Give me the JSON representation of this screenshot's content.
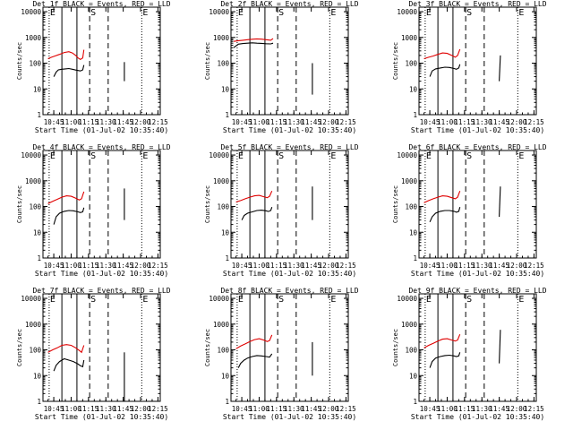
{
  "figure": {
    "xlabel": "Start Time (01-Jul-02 10:35:40)",
    "ylabel": "Counts/sec",
    "xticks": [
      "10:45",
      "11:00",
      "11:15",
      "11:30",
      "11:45",
      "12:00",
      "12:15"
    ],
    "yticks": [
      "1",
      "10",
      "100",
      "1000",
      "10000"
    ],
    "colors": {
      "events": "#000000",
      "lld": "#e00000",
      "axes": "#000000",
      "background": "#ffffff"
    }
  },
  "chart_data": [
    {
      "type": "line",
      "title": "Det 1f BLACK = Events, RED = LLD",
      "xlim": [
        "10:35:40",
        "12:17"
      ],
      "ylim": [
        1,
        15000
      ],
      "yscale": "log",
      "markers": [
        {
          "label": "E",
          "time": "10:41"
        },
        {
          "label": "S",
          "time": "11:16"
        },
        {
          "label": "E",
          "time": "12:01"
        }
      ],
      "series": [
        {
          "name": "Events",
          "color": "#000000",
          "x": [
            "10:45",
            "10:47",
            "10:49",
            "10:52",
            "10:55",
            "10:58",
            "11:01",
            "11:04",
            "11:06",
            "11:08",
            "11:10",
            "11:11"
          ],
          "values": [
            30,
            45,
            55,
            58,
            60,
            62,
            58,
            54,
            52,
            50,
            55,
            85
          ]
        },
        {
          "name": "LLD",
          "color": "#e00000",
          "x": [
            "10:40",
            "10:43",
            "10:46",
            "10:50",
            "10:54",
            "10:58",
            "11:01",
            "11:04",
            "11:06",
            "11:08",
            "11:10",
            "11:11"
          ],
          "values": [
            150,
            170,
            190,
            220,
            260,
            280,
            250,
            200,
            160,
            140,
            160,
            330
          ]
        },
        {
          "name": "Events (late)",
          "color": "#000000",
          "x": [
            "11:46",
            "11:46"
          ],
          "values": [
            20,
            110
          ]
        }
      ]
    },
    {
      "type": "line",
      "title": "Det 2f BLACK = Events, RED = LLD",
      "xlim": [
        "10:35:40",
        "12:17"
      ],
      "ylim": [
        1,
        15000
      ],
      "yscale": "log",
      "markers": [
        {
          "label": "E",
          "time": "10:41"
        },
        {
          "label": "S",
          "time": "11:16"
        },
        {
          "label": "E",
          "time": "12:01"
        }
      ],
      "series": [
        {
          "name": "Events",
          "color": "#000000",
          "x": [
            "10:38",
            "10:42",
            "10:46",
            "10:50",
            "10:54",
            "10:58",
            "11:02",
            "11:06",
            "11:10",
            "11:12"
          ],
          "values": [
            400,
            550,
            580,
            600,
            620,
            600,
            590,
            570,
            560,
            600
          ]
        },
        {
          "name": "LLD",
          "color": "#e00000",
          "x": [
            "10:38",
            "10:42",
            "10:46",
            "10:50",
            "10:54",
            "10:58",
            "11:02",
            "11:06",
            "11:10",
            "11:12"
          ],
          "values": [
            700,
            750,
            780,
            820,
            850,
            880,
            860,
            820,
            780,
            900
          ]
        },
        {
          "name": "Events (late)",
          "color": "#000000",
          "x": [
            "11:46",
            "11:46"
          ],
          "values": [
            6,
            100
          ]
        }
      ]
    },
    {
      "type": "line",
      "title": "Det 3f BLACK = Events, RED = LLD",
      "xlim": [
        "10:35:40",
        "12:17"
      ],
      "ylim": [
        1,
        15000
      ],
      "yscale": "log",
      "markers": [
        {
          "label": "E",
          "time": "10:41"
        },
        {
          "label": "S",
          "time": "11:16"
        },
        {
          "label": "E",
          "time": "12:01"
        }
      ],
      "series": [
        {
          "name": "Events",
          "color": "#000000",
          "x": [
            "10:45",
            "10:47",
            "10:50",
            "10:54",
            "10:58",
            "11:02",
            "11:06",
            "11:08",
            "11:10",
            "11:11"
          ],
          "values": [
            30,
            50,
            60,
            65,
            70,
            68,
            62,
            58,
            65,
            90
          ]
        },
        {
          "name": "LLD",
          "color": "#e00000",
          "x": [
            "10:40",
            "10:44",
            "10:48",
            "10:52",
            "10:56",
            "11:00",
            "11:04",
            "11:07",
            "11:09",
            "11:11"
          ],
          "values": [
            150,
            170,
            190,
            220,
            250,
            240,
            200,
            170,
            200,
            350
          ]
        },
        {
          "name": "Events (late)",
          "color": "#000000",
          "x": [
            "11:45",
            "11:46"
          ],
          "values": [
            20,
            200
          ]
        }
      ]
    },
    {
      "type": "line",
      "title": "Det 4f BLACK = Events, RED = LLD",
      "xlim": [
        "10:35:40",
        "12:17"
      ],
      "ylim": [
        1,
        15000
      ],
      "yscale": "log",
      "markers": [
        {
          "label": "E",
          "time": "10:41"
        },
        {
          "label": "S",
          "time": "11:16"
        },
        {
          "label": "E",
          "time": "12:01"
        }
      ],
      "series": [
        {
          "name": "Events",
          "color": "#000000",
          "x": [
            "10:45",
            "10:47",
            "10:50",
            "10:54",
            "10:58",
            "11:02",
            "11:06",
            "11:08",
            "11:10",
            "11:11"
          ],
          "values": [
            20,
            40,
            55,
            65,
            70,
            68,
            62,
            58,
            62,
            90
          ]
        },
        {
          "name": "LLD",
          "color": "#e00000",
          "x": [
            "10:40",
            "10:44",
            "10:48",
            "10:52",
            "10:56",
            "11:00",
            "11:04",
            "11:07",
            "11:09",
            "11:11"
          ],
          "values": [
            130,
            160,
            190,
            230,
            260,
            250,
            210,
            180,
            200,
            380
          ]
        },
        {
          "name": "Events (late)",
          "color": "#000000",
          "x": [
            "11:46",
            "11:46"
          ],
          "values": [
            30,
            500
          ]
        }
      ]
    },
    {
      "type": "line",
      "title": "Det 5f BLACK = Events, RED = LLD",
      "xlim": [
        "10:35:40",
        "12:17"
      ],
      "ylim": [
        1,
        15000
      ],
      "yscale": "log",
      "markers": [
        {
          "label": "E",
          "time": "10:41"
        },
        {
          "label": "S",
          "time": "11:16"
        },
        {
          "label": "E",
          "time": "12:01"
        }
      ],
      "series": [
        {
          "name": "Events",
          "color": "#000000",
          "x": [
            "10:45",
            "10:47",
            "10:50",
            "10:54",
            "10:58",
            "11:02",
            "11:06",
            "11:08",
            "11:10",
            "11:11"
          ],
          "values": [
            30,
            45,
            55,
            62,
            70,
            72,
            68,
            64,
            70,
            95
          ]
        },
        {
          "name": "LLD",
          "color": "#e00000",
          "x": [
            "10:40",
            "10:44",
            "10:48",
            "10:52",
            "10:56",
            "11:00",
            "11:04",
            "11:07",
            "11:09",
            "11:11"
          ],
          "values": [
            150,
            170,
            200,
            230,
            260,
            270,
            240,
            220,
            250,
            400
          ]
        },
        {
          "name": "Events (late)",
          "color": "#000000",
          "x": [
            "11:46",
            "11:46"
          ],
          "values": [
            30,
            600
          ]
        }
      ]
    },
    {
      "type": "line",
      "title": "Det 6f BLACK = Events, RED = LLD",
      "xlim": [
        "10:35:40",
        "12:17"
      ],
      "ylim": [
        1,
        15000
      ],
      "yscale": "log",
      "markers": [
        {
          "label": "E",
          "time": "10:41"
        },
        {
          "label": "S",
          "time": "11:16"
        },
        {
          "label": "E",
          "time": "12:01"
        }
      ],
      "series": [
        {
          "name": "Events",
          "color": "#000000",
          "x": [
            "10:45",
            "10:47",
            "10:50",
            "10:54",
            "10:58",
            "11:02",
            "11:06",
            "11:08",
            "11:10",
            "11:11"
          ],
          "values": [
            25,
            40,
            55,
            65,
            70,
            70,
            65,
            60,
            65,
            95
          ]
        },
        {
          "name": "LLD",
          "color": "#e00000",
          "x": [
            "10:40",
            "10:44",
            "10:48",
            "10:52",
            "10:56",
            "11:00",
            "11:04",
            "11:07",
            "11:09",
            "11:11"
          ],
          "values": [
            140,
            170,
            200,
            230,
            260,
            250,
            220,
            200,
            230,
            400
          ]
        },
        {
          "name": "Events (late)",
          "color": "#000000",
          "x": [
            "11:45",
            "11:46"
          ],
          "values": [
            40,
            600
          ]
        }
      ]
    },
    {
      "type": "line",
      "title": "Det 7f BLACK = Events, RED = LLD",
      "xlim": [
        "10:35:40",
        "12:17"
      ],
      "ylim": [
        1,
        15000
      ],
      "yscale": "log",
      "markers": [
        {
          "label": "E",
          "time": "10:41"
        },
        {
          "label": "S",
          "time": "11:16"
        },
        {
          "label": "E",
          "time": "12:01"
        }
      ],
      "series": [
        {
          "name": "Events",
          "color": "#000000",
          "x": [
            "10:45",
            "10:47",
            "10:50",
            "10:54",
            "10:58",
            "11:02",
            "11:06",
            "11:08",
            "11:10",
            "11:11"
          ],
          "values": [
            15,
            25,
            35,
            45,
            40,
            35,
            28,
            24,
            22,
            40
          ]
        },
        {
          "name": "LLD",
          "color": "#e00000",
          "x": [
            "10:40",
            "10:44",
            "10:48",
            "10:52",
            "10:56",
            "11:00",
            "11:04",
            "11:07",
            "11:09",
            "11:11"
          ],
          "values": [
            80,
            100,
            120,
            150,
            160,
            150,
            120,
            95,
            80,
            150
          ]
        },
        {
          "name": "Events (late)",
          "color": "#000000",
          "x": [
            "11:46",
            "11:46"
          ],
          "values": [
            1,
            80
          ]
        }
      ]
    },
    {
      "type": "line",
      "title": "Det 8f BLACK = Events, RED = LLD",
      "xlim": [
        "10:35:40",
        "12:17"
      ],
      "ylim": [
        1,
        15000
      ],
      "yscale": "log",
      "markers": [
        {
          "label": "E",
          "time": "10:41"
        },
        {
          "label": "S",
          "time": "11:16"
        },
        {
          "label": "E",
          "time": "12:01"
        }
      ],
      "series": [
        {
          "name": "Events",
          "color": "#000000",
          "x": [
            "10:42",
            "10:44",
            "10:47",
            "10:50",
            "10:54",
            "10:58",
            "11:02",
            "11:06",
            "11:09",
            "11:11"
          ],
          "values": [
            20,
            30,
            40,
            48,
            55,
            60,
            58,
            55,
            52,
            70
          ]
        },
        {
          "name": "LLD",
          "color": "#e00000",
          "x": [
            "10:40",
            "10:44",
            "10:48",
            "10:52",
            "10:56",
            "11:00",
            "11:04",
            "11:07",
            "11:09",
            "11:11"
          ],
          "values": [
            110,
            140,
            170,
            210,
            250,
            270,
            240,
            210,
            230,
            380
          ]
        },
        {
          "name": "Events (late)",
          "color": "#000000",
          "x": [
            "11:46",
            "11:46"
          ],
          "values": [
            10,
            200
          ]
        }
      ]
    },
    {
      "type": "line",
      "title": "Det 9f BLACK = Events, RED = LLD",
      "xlim": [
        "10:35:40",
        "12:17"
      ],
      "ylim": [
        1,
        15000
      ],
      "yscale": "log",
      "markers": [
        {
          "label": "E",
          "time": "10:41"
        },
        {
          "label": "S",
          "time": "11:16"
        },
        {
          "label": "E",
          "time": "12:01"
        }
      ],
      "series": [
        {
          "name": "Events",
          "color": "#000000",
          "x": [
            "10:45",
            "10:47",
            "10:50",
            "10:54",
            "10:58",
            "11:02",
            "11:06",
            "11:08",
            "11:10",
            "11:11"
          ],
          "values": [
            20,
            35,
            48,
            55,
            60,
            62,
            58,
            55,
            58,
            80
          ]
        },
        {
          "name": "LLD",
          "color": "#e00000",
          "x": [
            "10:40",
            "10:44",
            "10:48",
            "10:52",
            "10:56",
            "11:00",
            "11:04",
            "11:07",
            "11:09",
            "11:11"
          ],
          "values": [
            120,
            150,
            180,
            220,
            260,
            270,
            240,
            220,
            240,
            400
          ]
        },
        {
          "name": "Events (late)",
          "color": "#000000",
          "x": [
            "11:45",
            "11:46"
          ],
          "values": [
            30,
            600
          ]
        }
      ]
    }
  ]
}
